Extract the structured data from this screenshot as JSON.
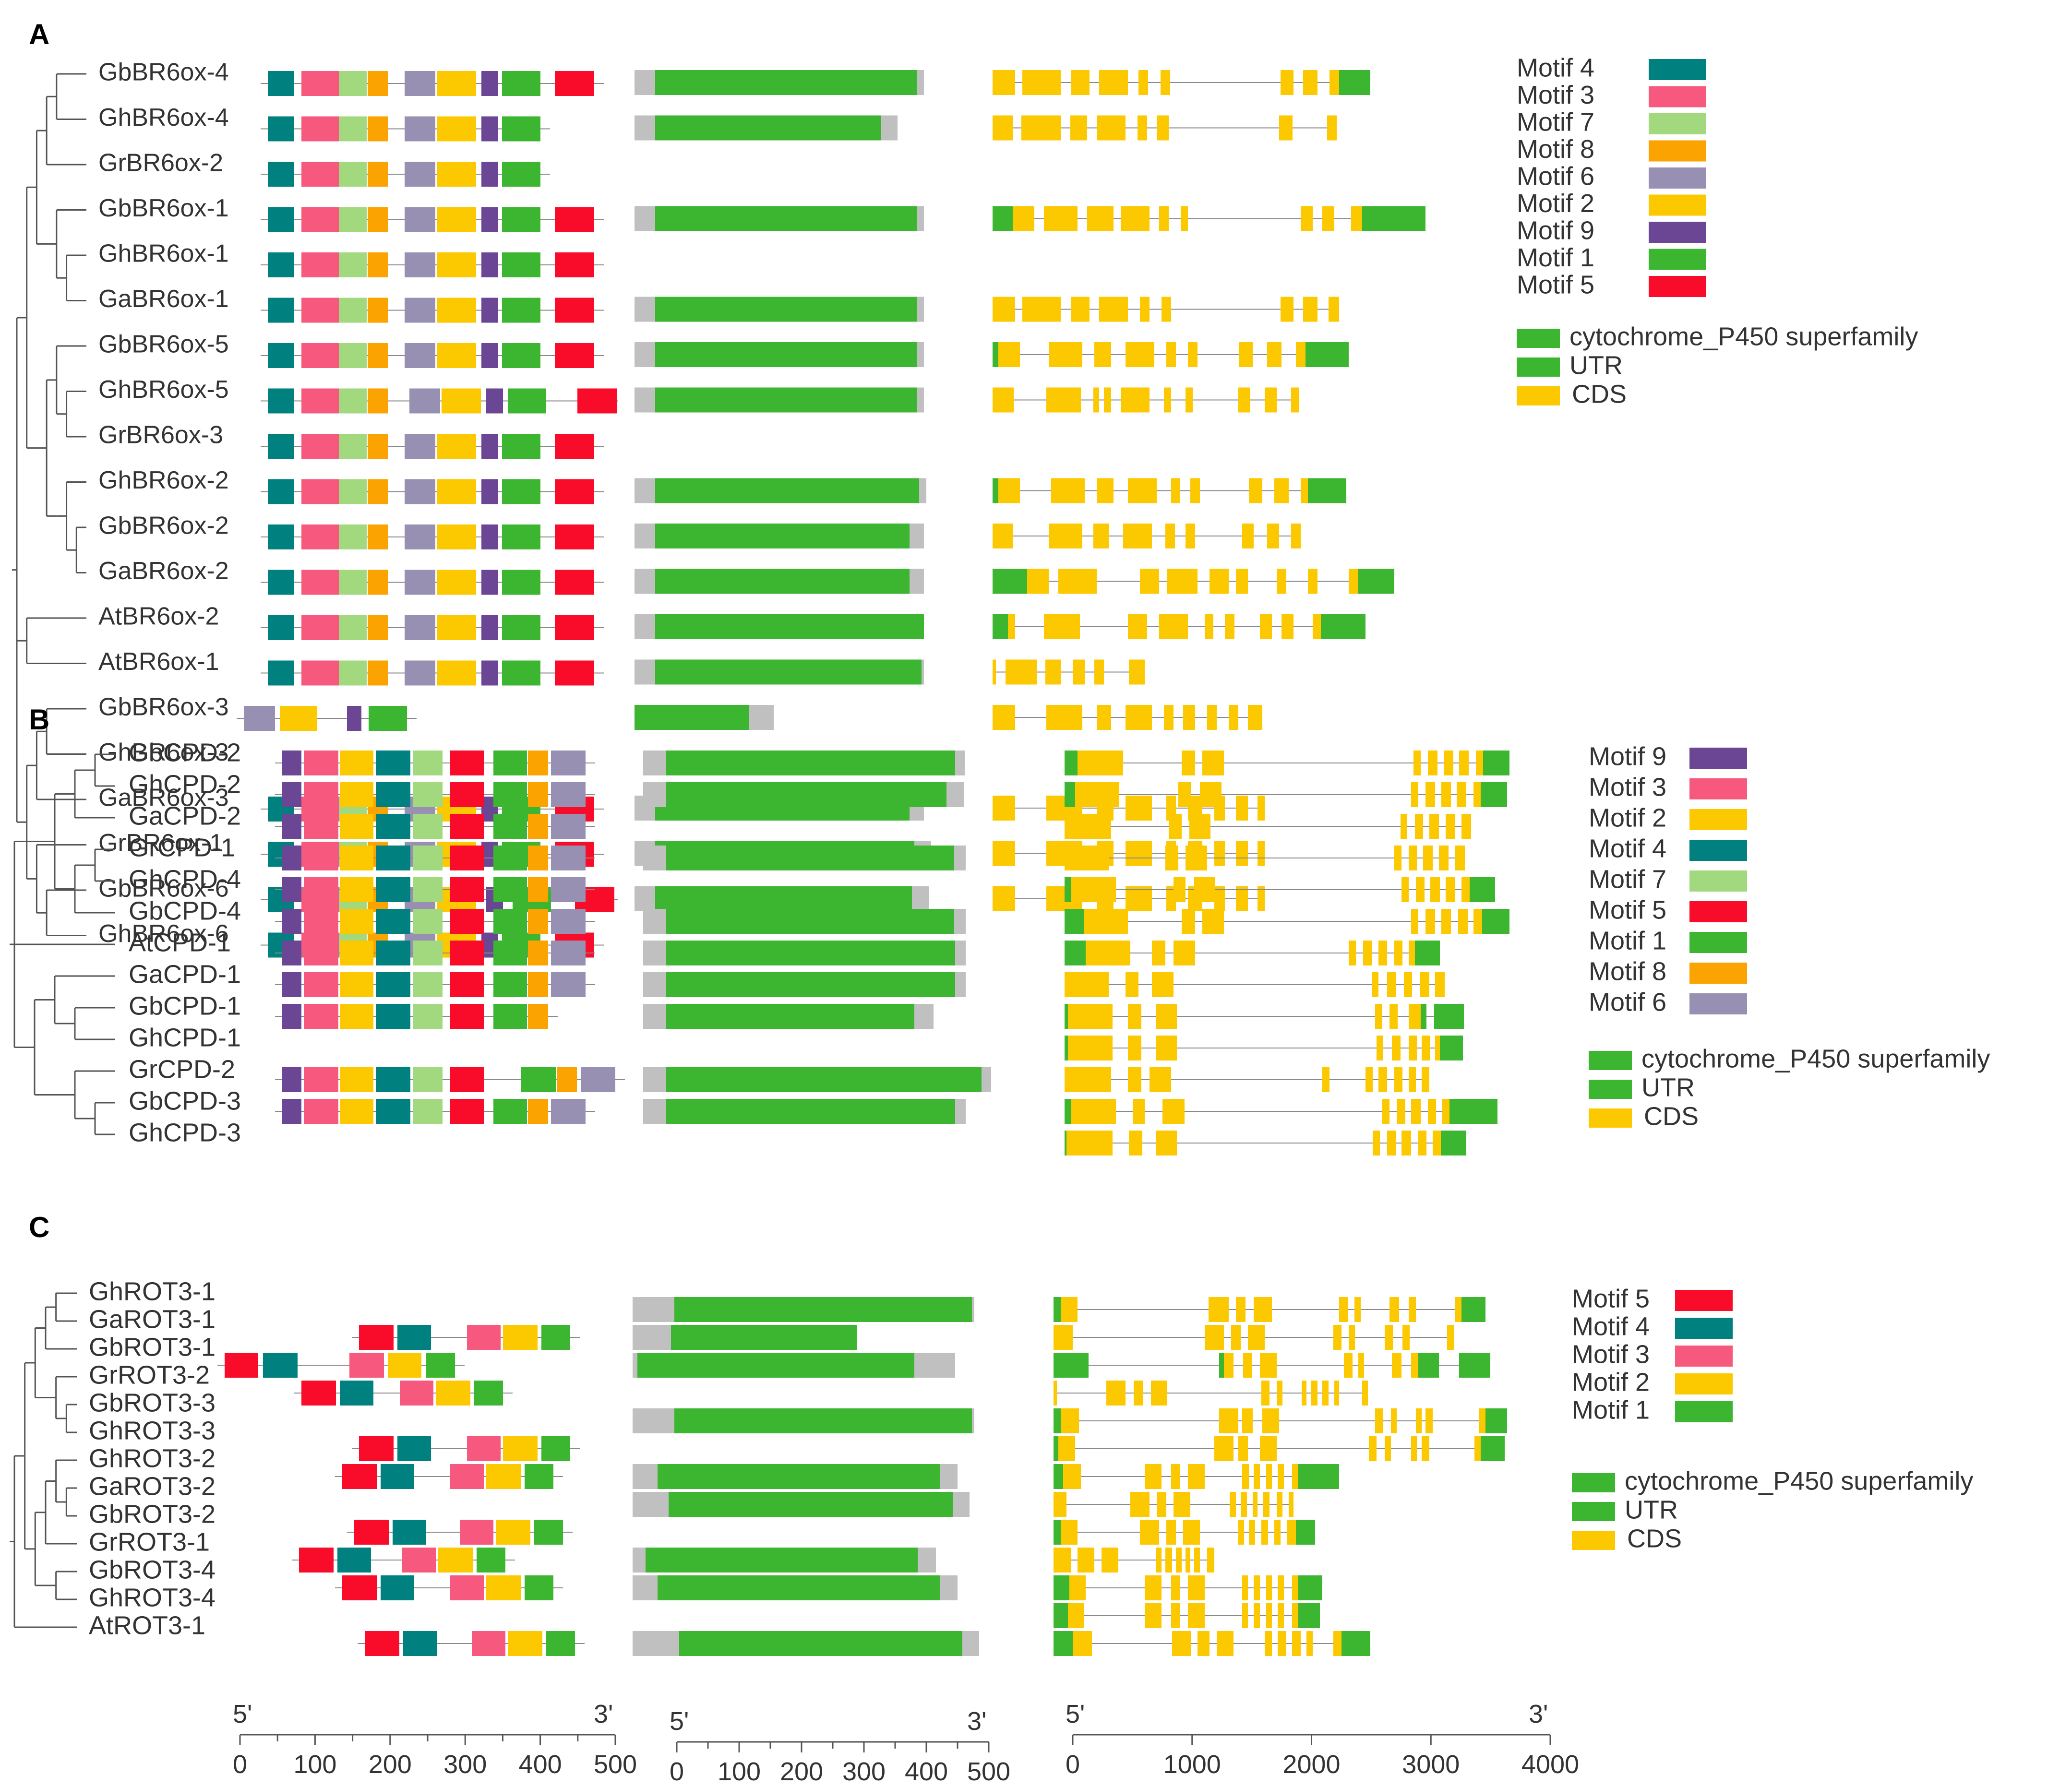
{
  "colors": {
    "motif1": "#3cb631",
    "motif2": "#fcc800",
    "motif3": "#f7597e",
    "motif4": "#00807f",
    "motif5": "#f80c2a",
    "motif6": "#9890b3",
    "motif7": "#a2d97f",
    "motif8": "#fba301",
    "motif9": "#6a4695",
    "domain": "#3cb631",
    "flank": "#c0c0c0",
    "utr": "#3cb631",
    "cds": "#fcc800",
    "line": "#8a8a8a",
    "tree": "#555555",
    "text": "#333333"
  },
  "panels": [
    {
      "label": "A",
      "genes": [
        "GbBR6ox-4",
        "GhBR6ox-4",
        "GrBR6ox-2",
        "GbBR6ox-1",
        "GhBR6ox-1",
        "GaBR6ox-1",
        "GbBR6ox-5",
        "GhBR6ox-5",
        "GrBR6ox-3",
        "GhBR6ox-2",
        "GbBR6ox-2",
        "GaBR6ox-2",
        "AtBR6ox-2",
        "AtBR6ox-1",
        "GbBR6ox-3",
        "GhBR6ox-3",
        "GaBR6ox-3",
        "GrBR6ox-1",
        "GbBR6ox-6",
        "GhBR6ox-6"
      ],
      "motif_legend": [
        {
          "label": "Motif 4",
          "motif": 4
        },
        {
          "label": "Motif 3",
          "motif": 3
        },
        {
          "label": "Motif 7",
          "motif": 7
        },
        {
          "label": "Motif 8",
          "motif": 8
        },
        {
          "label": "Motif 6",
          "motif": 6
        },
        {
          "label": "Motif 2",
          "motif": 2
        },
        {
          "label": "Motif 9",
          "motif": 9
        },
        {
          "label": "Motif 1",
          "motif": 1
        },
        {
          "label": "Motif 5",
          "motif": 5
        }
      ],
      "domain_legend": [
        {
          "label": "cytochrome_P450 superfamily",
          "kind": "domain"
        },
        {
          "label": "UTR",
          "kind": "utr"
        },
        {
          "label": "CDS",
          "kind": "cds"
        }
      ]
    },
    {
      "label": "B",
      "genes": [
        "GbCPD-2",
        "GhCPD-2",
        "GaCPD-2",
        "GrCPD-1",
        "GhCPD-4",
        "GbCPD-4",
        "AtCPD-1",
        "GaCPD-1",
        "GbCPD-1",
        "GhCPD-1",
        "GrCPD-2",
        "GbCPD-3",
        "GhCPD-3"
      ],
      "motif_legend": [
        {
          "label": "Motif 9",
          "motif": 9
        },
        {
          "label": "Motif 3",
          "motif": 3
        },
        {
          "label": "Motif 2",
          "motif": 2
        },
        {
          "label": "Motif 4",
          "motif": 4
        },
        {
          "label": "Motif 7",
          "motif": 7
        },
        {
          "label": "Motif 5",
          "motif": 5
        },
        {
          "label": "Motif 1",
          "motif": 1
        },
        {
          "label": "Motif 8",
          "motif": 8
        },
        {
          "label": "Motif 6",
          "motif": 6
        }
      ],
      "domain_legend": [
        {
          "label": "cytochrome_P450 superfamily",
          "kind": "domain"
        },
        {
          "label": "UTR",
          "kind": "utr"
        },
        {
          "label": "CDS",
          "kind": "cds"
        }
      ]
    },
    {
      "label": "C",
      "genes": [
        "GhROT3-1",
        "GaROT3-1",
        "GbROT3-1",
        "GrROT3-2",
        "GbROT3-3",
        "GhROT3-3",
        "GhROT3-2",
        "GaROT3-2",
        "GbROT3-2",
        "GrROT3-1",
        "GbROT3-4",
        "GhROT3-4",
        "AtROT3-1"
      ],
      "motif_legend": [
        {
          "label": "Motif 5",
          "motif": 5
        },
        {
          "label": "Motif 4",
          "motif": 4
        },
        {
          "label": "Motif 3",
          "motif": 3
        },
        {
          "label": "Motif 2",
          "motif": 2
        },
        {
          "label": "Motif 1",
          "motif": 1
        }
      ],
      "domain_legend": [
        {
          "label": "cytochrome_P450 superfamily",
          "kind": "domain"
        },
        {
          "label": "UTR",
          "kind": "utr"
        },
        {
          "label": "CDS",
          "kind": "cds"
        }
      ]
    }
  ],
  "axes": {
    "motif": {
      "end5": "5'",
      "end3": "3'",
      "ticks": [
        "0",
        "100",
        "200",
        "300",
        "400",
        "500"
      ]
    },
    "domain": {
      "end5": "5'",
      "end3": "3'",
      "ticks": [
        "0",
        "100",
        "200",
        "300",
        "400",
        "500"
      ]
    },
    "gene": {
      "end5": "5'",
      "end3": "3'",
      "ticks": [
        "0",
        "1000",
        "2000",
        "3000",
        "4000"
      ]
    }
  }
}
